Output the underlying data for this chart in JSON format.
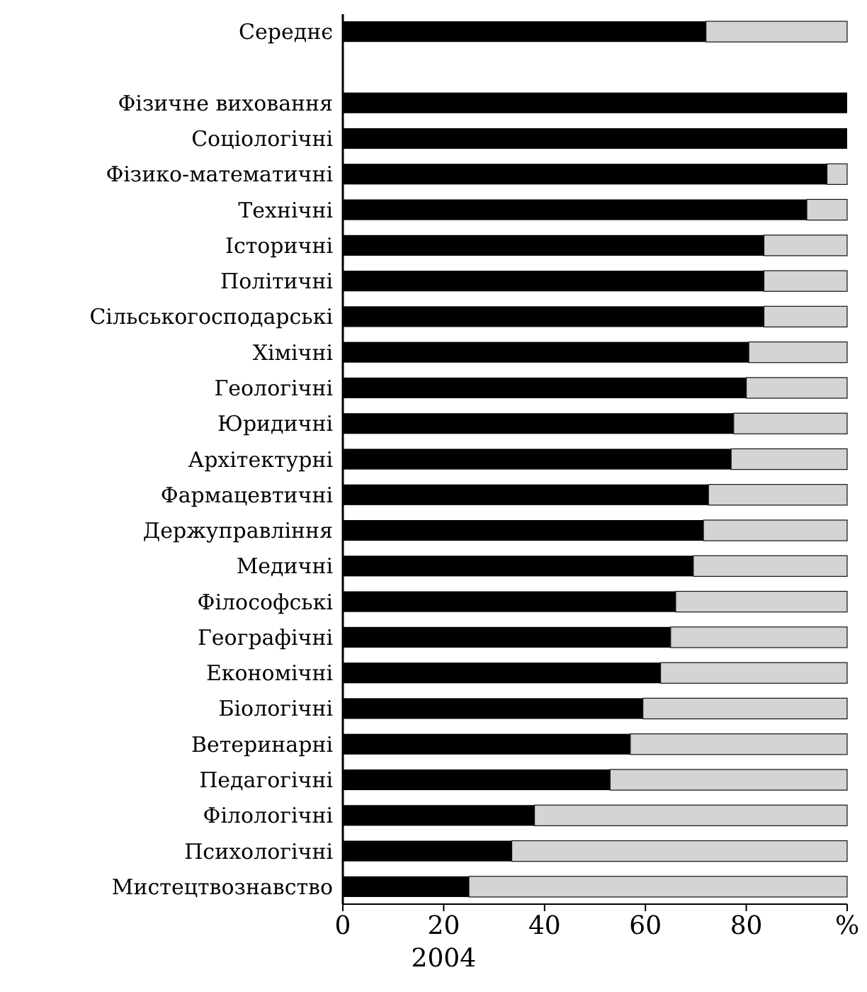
{
  "chart_data": {
    "type": "bar",
    "orientation": "horizontal",
    "stacked": true,
    "xlabel": "2004",
    "categories": [
      "Середнє",
      null,
      "Фізичне виховання",
      "Соціологічні",
      "Фізико-математичні",
      "Технічні",
      "Історичні",
      "Політичні",
      "Сільськогосподарські",
      "Хімічні",
      "Геологічні",
      "Юридичні",
      "Архітектурні",
      "Фармацевтичні",
      "Держуправління",
      "Медичні",
      "Філософські",
      "Географічні",
      "Економічні",
      "Біологічні",
      "Ветеринарні",
      "Педагогічні",
      "Філологічні",
      "Психологічні",
      "Мистецтвознавство"
    ],
    "series": [
      {
        "color": "#000000",
        "values": [
          72,
          null,
          100,
          100,
          96,
          92,
          83.5,
          83.5,
          83.5,
          80.5,
          80,
          77.5,
          77,
          72.5,
          71.5,
          69.5,
          66,
          65,
          63,
          59.5,
          57,
          53,
          38,
          33.5,
          25
        ]
      },
      {
        "color": "#d4d4d4",
        "values": [
          28,
          null,
          0,
          0,
          4,
          8,
          16.5,
          16.5,
          16.5,
          19.5,
          20,
          22.5,
          23,
          27.5,
          28.5,
          30.5,
          34,
          35,
          37,
          40.5,
          43,
          47,
          62,
          66.5,
          75
        ]
      }
    ],
    "xlim": [
      0,
      100
    ],
    "xticks": [
      0,
      20,
      40,
      60,
      80,
      {
        "value": 100,
        "label": "%"
      }
    ]
  }
}
